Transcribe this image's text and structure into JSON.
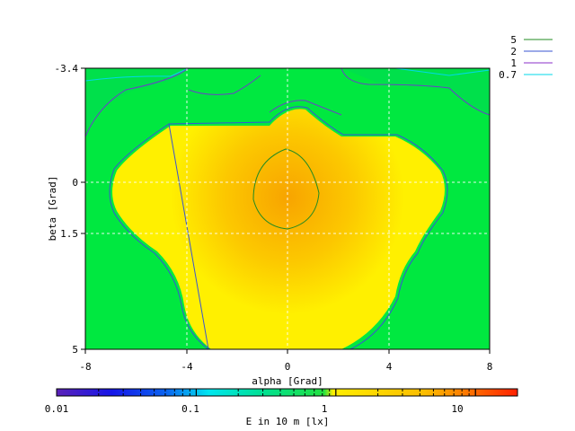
{
  "chart_data": {
    "type": "heatmap",
    "xlabel": "alpha [Grad]",
    "ylabel": "beta [Grad]",
    "colorbar_label": "E in 10 m [lx]",
    "xlim": [
      -8,
      8
    ],
    "ylim": [
      -3.4,
      5
    ],
    "y_inverted": true,
    "x_ticks": [
      "-8",
      "-4",
      "0",
      "4",
      "8"
    ],
    "y_ticks": [
      "-3.4",
      "0",
      "1.5",
      "5"
    ],
    "colorbar_ticks": [
      "0.01",
      "0.1",
      "1",
      "10"
    ],
    "colorbar_range": [
      0.01,
      20
    ],
    "colorbar_scale": "log",
    "grid": true,
    "legend_position": "top-right",
    "contour_levels": [
      {
        "label": "5",
        "value": 5,
        "color": "#228B22"
      },
      {
        "label": "2",
        "value": 2,
        "color": "#3a55d0"
      },
      {
        "label": "1",
        "value": 1,
        "color": "#8b2fc9"
      },
      {
        "label": "0.7",
        "value": 0.7,
        "color": "#00d8e8"
      }
    ],
    "field_summary": {
      "peak_value": 8,
      "peak_location": {
        "alpha": 0,
        "beta": 0.3
      },
      "background_value": 1.3,
      "bright_region_threshold": 2,
      "bright_region_boundary_beta": [
        -2.2,
        -2.2,
        -1.3,
        -0.5,
        0.0,
        1.5,
        3.0,
        5.0,
        5.0
      ]
    }
  }
}
